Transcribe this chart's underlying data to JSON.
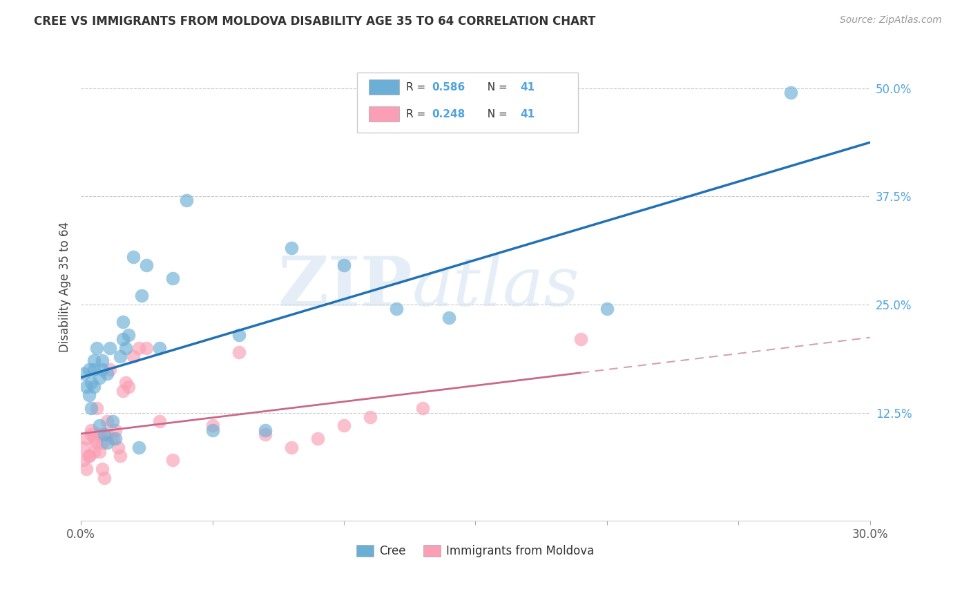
{
  "title": "CREE VS IMMIGRANTS FROM MOLDOVA DISABILITY AGE 35 TO 64 CORRELATION CHART",
  "source": "Source: ZipAtlas.com",
  "ylabel": "Disability Age 35 to 64",
  "xlim": [
    0.0,
    0.3
  ],
  "ylim": [
    0.0,
    0.54
  ],
  "xticks": [
    0.0,
    0.05,
    0.1,
    0.15,
    0.2,
    0.25,
    0.3
  ],
  "xtick_labels": [
    "0.0%",
    "",
    "",
    "",
    "",
    "",
    "30.0%"
  ],
  "ytick_labels_right": [
    "12.5%",
    "25.0%",
    "37.5%",
    "50.0%"
  ],
  "ytick_positions_right": [
    0.125,
    0.25,
    0.375,
    0.5
  ],
  "legend_r1": "0.586",
  "legend_n1": "41",
  "legend_r2": "0.248",
  "legend_n2": "41",
  "color_cree": "#6baed6",
  "color_moldova": "#fa9fb5",
  "color_cree_line": "#2171b5",
  "color_moldova_line": "#c9698a",
  "color_moldova_line_dashed": "#d4a0b5",
  "watermark_zip": "ZIP",
  "watermark_atlas": "atlas",
  "background_color": "#ffffff",
  "grid_color": "#bbbbbb",
  "cree_x": [
    0.001,
    0.002,
    0.003,
    0.003,
    0.004,
    0.004,
    0.005,
    0.005,
    0.005,
    0.006,
    0.007,
    0.007,
    0.008,
    0.008,
    0.009,
    0.01,
    0.01,
    0.011,
    0.012,
    0.013,
    0.015,
    0.016,
    0.016,
    0.017,
    0.018,
    0.02,
    0.022,
    0.023,
    0.025,
    0.03,
    0.035,
    0.04,
    0.05,
    0.06,
    0.07,
    0.08,
    0.1,
    0.12,
    0.14,
    0.2,
    0.27
  ],
  "cree_y": [
    0.17,
    0.155,
    0.145,
    0.175,
    0.16,
    0.13,
    0.155,
    0.175,
    0.185,
    0.2,
    0.11,
    0.165,
    0.185,
    0.175,
    0.1,
    0.09,
    0.17,
    0.2,
    0.115,
    0.095,
    0.19,
    0.23,
    0.21,
    0.2,
    0.215,
    0.305,
    0.085,
    0.26,
    0.295,
    0.2,
    0.28,
    0.37,
    0.105,
    0.215,
    0.105,
    0.315,
    0.295,
    0.245,
    0.235,
    0.245,
    0.495
  ],
  "moldova_x": [
    0.001,
    0.001,
    0.002,
    0.002,
    0.003,
    0.003,
    0.004,
    0.004,
    0.005,
    0.005,
    0.006,
    0.006,
    0.007,
    0.007,
    0.008,
    0.008,
    0.009,
    0.01,
    0.01,
    0.011,
    0.012,
    0.013,
    0.014,
    0.015,
    0.016,
    0.017,
    0.018,
    0.02,
    0.022,
    0.025,
    0.03,
    0.035,
    0.05,
    0.06,
    0.07,
    0.08,
    0.09,
    0.1,
    0.11,
    0.13,
    0.19
  ],
  "moldova_y": [
    0.085,
    0.07,
    0.06,
    0.095,
    0.075,
    0.075,
    0.105,
    0.1,
    0.095,
    0.08,
    0.13,
    0.09,
    0.1,
    0.08,
    0.09,
    0.06,
    0.05,
    0.115,
    0.1,
    0.175,
    0.095,
    0.105,
    0.085,
    0.075,
    0.15,
    0.16,
    0.155,
    0.19,
    0.2,
    0.2,
    0.115,
    0.07,
    0.11,
    0.195,
    0.1,
    0.085,
    0.095,
    0.11,
    0.12,
    0.13,
    0.21
  ]
}
